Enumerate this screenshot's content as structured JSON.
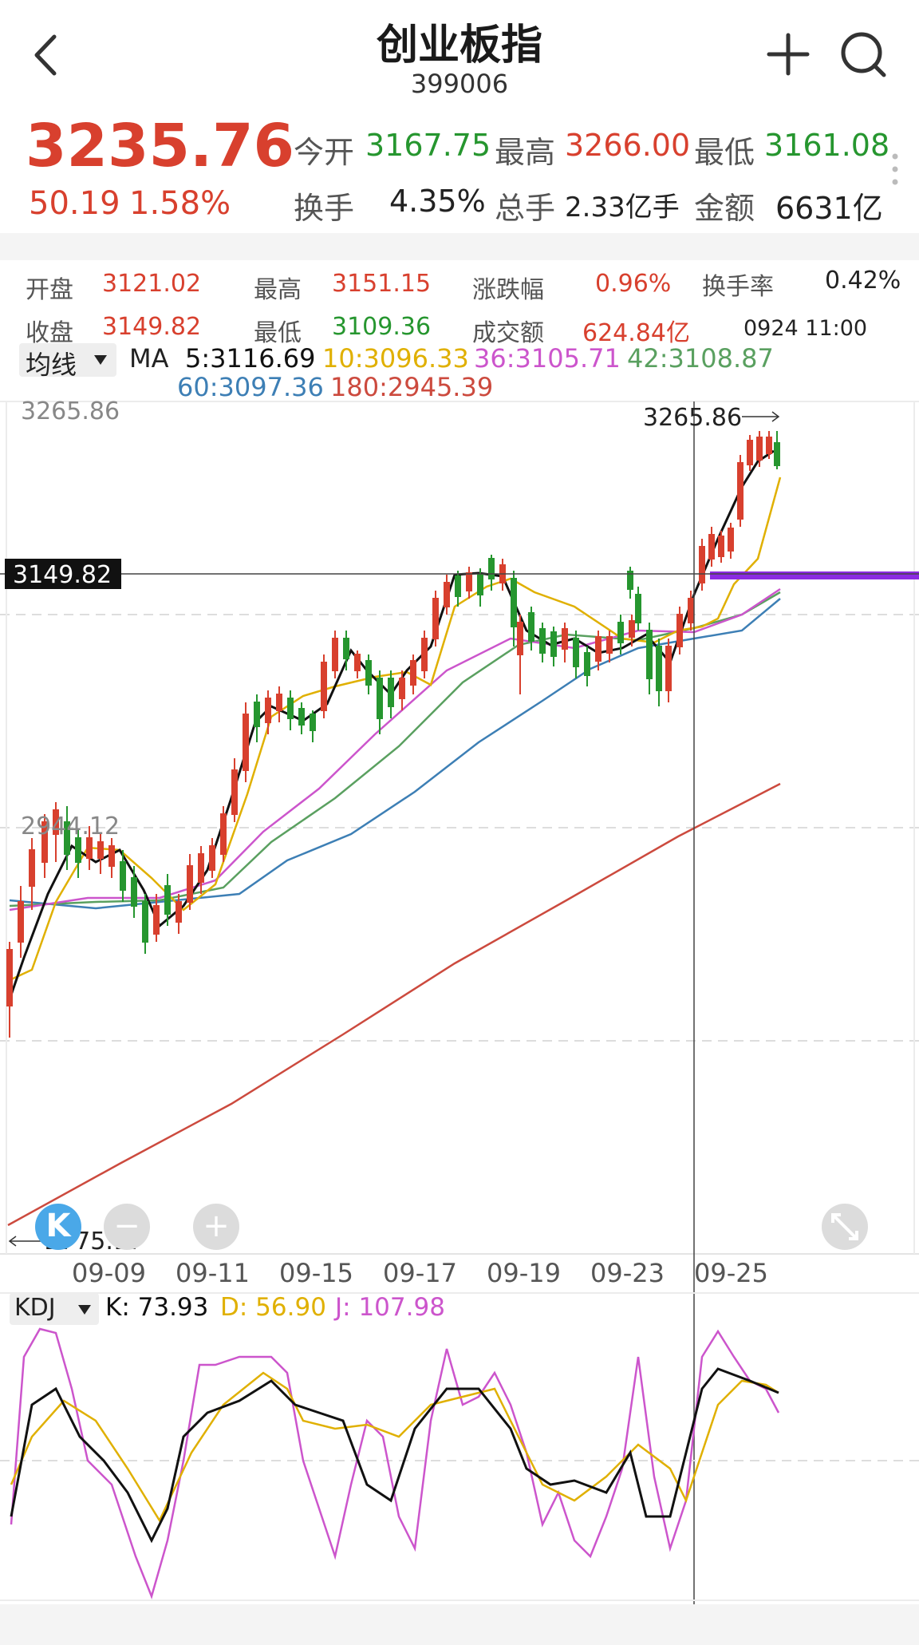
{
  "header": {
    "title": "创业板指",
    "code": "399006",
    "back_icon": "chevron-left-icon",
    "add_icon": "plus-icon",
    "search_icon": "search-icon"
  },
  "quote": {
    "price": "3235.76",
    "change": "50.19",
    "change_pct": "1.58%",
    "open_label": "今开",
    "open": "3167.75",
    "high_label": "最高",
    "high": "3266.00",
    "low_label": "最低",
    "low": "3161.08",
    "turnover_label": "换手",
    "turnover": "4.35%",
    "volume_label": "总手",
    "volume": "2.33亿手",
    "amount_label": "金额",
    "amount": "6631亿"
  },
  "candle_info": {
    "open_label": "开盘",
    "open": "3121.02",
    "high_label": "最高",
    "high": "3151.15",
    "chg_label": "涨跌幅",
    "chg": "0.96%",
    "turn_label": "换手率",
    "turn": "0.42%",
    "close_label": "收盘",
    "close": "3149.82",
    "low_label": "最低",
    "low": "3109.36",
    "amount_label": "成交额",
    "amount": "624.84亿",
    "time": "0924 11:00"
  },
  "ma_legend": {
    "selector": "均线",
    "prefix": "MA",
    "ma5": "5:3116.69",
    "ma10": "10:3096.33",
    "ma36": "36:3105.71",
    "ma42": "42:3108.87",
    "ma60": "60:3097.36",
    "ma180": "180:2945.39"
  },
  "chart": {
    "y_top": "3265.86",
    "y_mid": "2944.12",
    "y_bottom": "2775.17",
    "crosshair_price": "3149.82",
    "high_marker": "3265.86",
    "dates": [
      "09-09",
      "09-11",
      "09-15",
      "09-17",
      "09-19",
      "09-23",
      "09-25"
    ],
    "k_button": "K",
    "zoom_out": "−",
    "zoom_in": "+"
  },
  "kdj": {
    "selector": "KDJ",
    "k": "K: 73.93",
    "d": "D: 56.90",
    "j": "J: 107.98"
  },
  "colors": {
    "up": "#d8402e",
    "down": "#26962f",
    "ma5": "#111111",
    "ma10": "#e0b000",
    "ma36": "#cc55cc",
    "ma42": "#5aa060",
    "ma60": "#3d7fb5",
    "ma180": "#cc4a3e",
    "marker": "#8a2be2"
  },
  "chart_data": {
    "type": "candlestick",
    "period": "60min",
    "dates": [
      "09-09",
      "09-11",
      "09-15",
      "09-17",
      "09-19",
      "09-23",
      "09-25"
    ],
    "ylim": [
      2775.17,
      3265.86
    ],
    "close_series_approx": [
      2840,
      2900,
      2940,
      2920,
      2930,
      2890,
      2895,
      2915,
      2960,
      3050,
      3080,
      3060,
      3090,
      3110,
      3090,
      3080,
      3105,
      3140,
      3150,
      3120,
      3100,
      3110,
      3115,
      3130,
      3120,
      3095,
      3110,
      3150,
      3235
    ],
    "ma180_range": [
      2775,
      2945
    ],
    "kdj_last": {
      "K": 73.93,
      "D": 56.9,
      "J": 107.98
    }
  }
}
